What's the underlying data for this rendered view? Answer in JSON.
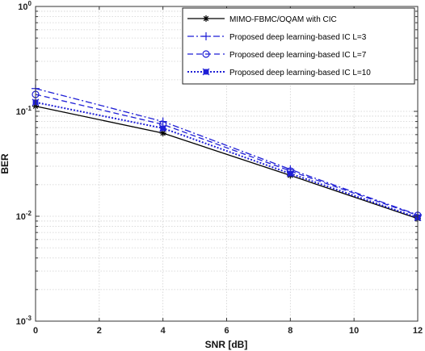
{
  "chart_data": {
    "type": "line",
    "title": "",
    "xlabel": "SNR [dB]",
    "ylabel": "BER",
    "xlim": [
      0,
      12
    ],
    "ylim": [
      0.001,
      1
    ],
    "yscale": "log",
    "grid": true,
    "legend_position": "top-right",
    "x_ticks": [
      "0",
      "2",
      "4",
      "6",
      "8",
      "10",
      "12"
    ],
    "y_ticks": [
      {
        "base": "10",
        "exp": "0",
        "value": 1
      },
      {
        "base": "10",
        "exp": "-1",
        "value": 0.1
      },
      {
        "base": "10",
        "exp": "-2",
        "value": 0.01
      },
      {
        "base": "10",
        "exp": "-3",
        "value": 0.001
      }
    ],
    "x": [
      0,
      4,
      8,
      12
    ],
    "series": [
      {
        "name": "MIMO-FBMC/OQAM with CIC",
        "values": [
          0.112,
          0.062,
          0.0245,
          0.0095
        ],
        "color": "#000000",
        "dash": "solid",
        "marker": "asterisk"
      },
      {
        "name": "Proposed deep learning-based IC  L=3",
        "values": [
          0.165,
          0.08,
          0.028,
          0.0103
        ],
        "color": "#1f1fd6",
        "dash": "dashdot",
        "marker": "plus"
      },
      {
        "name": "Proposed  deep learning-based IC L=7",
        "values": [
          0.145,
          0.075,
          0.027,
          0.0102
        ],
        "color": "#1f1fd6",
        "dash": "dashed",
        "marker": "circle"
      },
      {
        "name": "Proposed  deep learning-based IC L=10",
        "values": [
          0.122,
          0.069,
          0.0255,
          0.0097
        ],
        "color": "#1f1fd6",
        "dash": "dotted",
        "marker": "x-square"
      }
    ]
  }
}
